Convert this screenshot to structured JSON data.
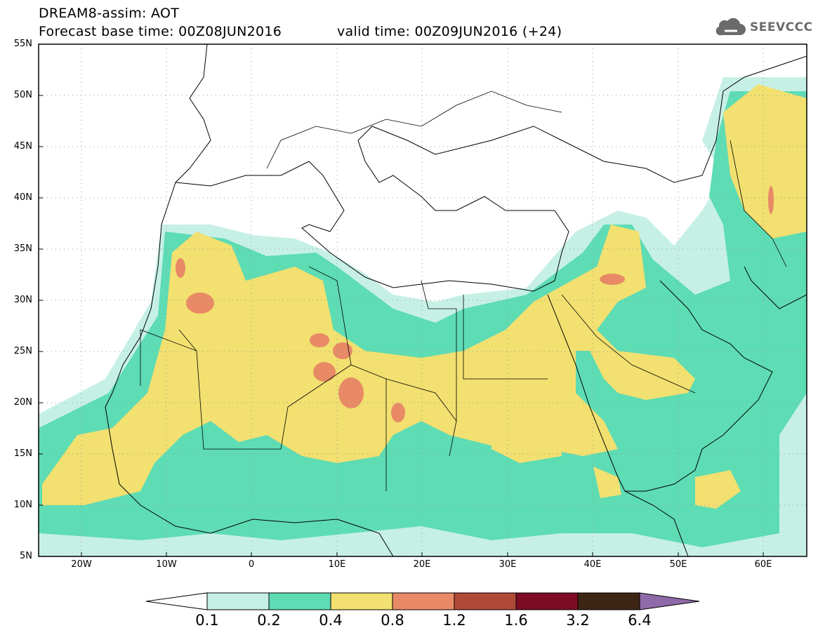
{
  "header": {
    "title": "DREAM8-assim: AOT",
    "base_time": "Forecast base time: 00Z08JUN2016",
    "valid_time": "valid time: 00Z09JUN2016 (+24)",
    "logo_text": "SEEVCCC",
    "logo_icon": "cloud-icon"
  },
  "map": {
    "projection": "lat-lon",
    "lon_range": [
      -25,
      65
    ],
    "lat_range": [
      5,
      55
    ],
    "lat_ticks": [
      "55N",
      "50N",
      "45N",
      "40N",
      "35N",
      "30N",
      "25N",
      "20N",
      "15N",
      "10N",
      "5N"
    ],
    "lon_ticks": [
      "20W",
      "10W",
      "0",
      "10E",
      "20E",
      "30E",
      "40E",
      "50E",
      "60E"
    ],
    "gridlines": "dotted"
  },
  "colorbar": {
    "labels": [
      "0.1",
      "0.2",
      "0.4",
      "0.8",
      "1.2",
      "1.6",
      "3.2",
      "6.4"
    ],
    "colors": [
      "#c6f0e6",
      "#5edcb4",
      "#f2e070",
      "#e88a66",
      "#b04a38",
      "#7e0b24",
      "#3e2614",
      "#8e6aa8"
    ],
    "extend": "both"
  }
}
